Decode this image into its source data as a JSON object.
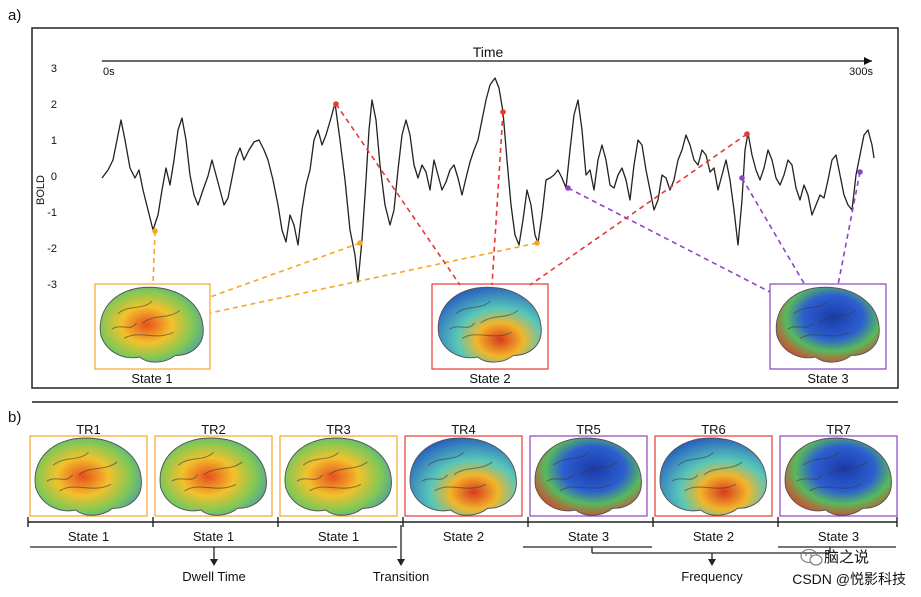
{
  "panel_a": {
    "label": "a)",
    "time_axis": {
      "title": "Time",
      "start": "0s",
      "end": "300s"
    },
    "y_axis": {
      "label": "BOLD",
      "ticks": [
        "3",
        "2",
        "1",
        "0",
        "-1",
        "-2",
        "-3"
      ]
    },
    "states": [
      {
        "label": "State 1",
        "color": "#f5a623"
      },
      {
        "label": "State 2",
        "color": "#e53935"
      },
      {
        "label": "State 3",
        "color": "#8e44c4"
      }
    ]
  },
  "panel_b": {
    "label": "b)",
    "trs": [
      {
        "label": "TR1",
        "state": "State 1",
        "color": "#f5a623"
      },
      {
        "label": "TR2",
        "state": "State 1",
        "color": "#f5a623"
      },
      {
        "label": "TR3",
        "state": "State 1",
        "color": "#f5a623"
      },
      {
        "label": "TR4",
        "state": "State 2",
        "color": "#e53935"
      },
      {
        "label": "TR5",
        "state": "State 3",
        "color": "#8e44c4"
      },
      {
        "label": "TR6",
        "state": "State 2",
        "color": "#e53935"
      },
      {
        "label": "TR7",
        "state": "State 3",
        "color": "#8e44c4"
      }
    ],
    "annotations": {
      "dwell": "Dwell Time",
      "transition": "Transition",
      "frequency": "Frequency"
    }
  },
  "watermark": {
    "line1": "脑之说",
    "line2": "CSDN @悦影科技"
  }
}
